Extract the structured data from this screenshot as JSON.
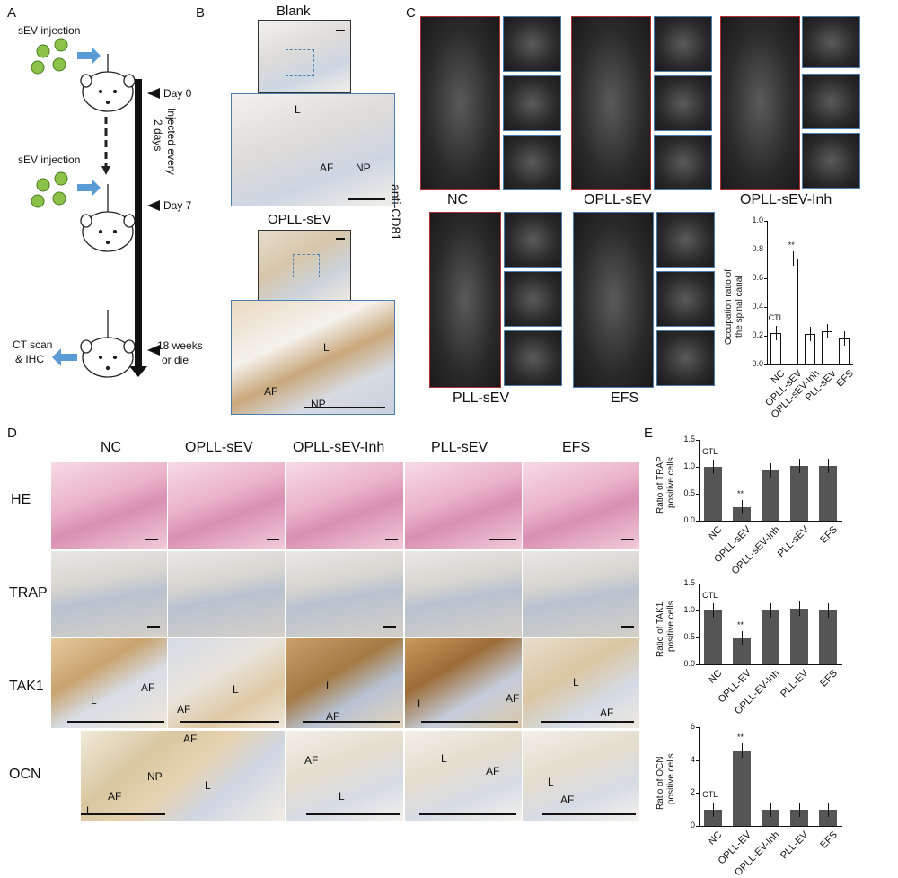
{
  "panels": {
    "A": "A",
    "B": "B",
    "C": "C",
    "D": "D",
    "E": "E"
  },
  "panelA": {
    "sev_top": "sEV injection",
    "sev_mid": "sEV injection",
    "day0": "Day 0",
    "day7": "Day 7",
    "injected": "Injected every",
    "injected2": "2 days",
    "weeks": "18 weeks",
    "die": "or die",
    "ct1": "CT scan",
    "ct2": "& IHC"
  },
  "panelB": {
    "blank": "Blank",
    "opll": "OPLL-sEV",
    "anti": "anti-CD81",
    "L": "L",
    "AF": "AF",
    "NP": "NP"
  },
  "panelC": {
    "labels": [
      "NC",
      "OPLL-sEV",
      "OPLL-sEV-Inh",
      "PLL-sEV",
      "EFS"
    ],
    "chart": {
      "ylabel1": "Occupation ratio of",
      "ylabel2": "the spinal canal",
      "yticks": [
        "0.0",
        "0.2",
        "0.4",
        "0.6",
        "0.8",
        "1.0"
      ],
      "ctl": "CTL",
      "sig": "**",
      "categories": [
        "NC",
        "OPLL-sEV",
        "OPLL-sEV-Inh",
        "PLL-sEV",
        "EFS"
      ]
    }
  },
  "panelD": {
    "cols": [
      "NC",
      "OPLL-sEV",
      "OPLL-sEV-Inh",
      "PLL-sEV",
      "EFS"
    ],
    "rows": [
      "HE",
      "TRAP",
      "TAK1",
      "OCN"
    ],
    "L": "L",
    "AF": "AF",
    "NP": "NP"
  },
  "panelE": {
    "c1": {
      "ylabel1": "Ratio of TRAP",
      "ylabel2": "positive cells",
      "yticks": [
        "0.0",
        "0.5",
        "1.0",
        "1.5"
      ],
      "categories": [
        "NC",
        "OPLL-sEV",
        "OPLL-sEV-Inh",
        "PLL-sEV",
        "EFS"
      ]
    },
    "c2": {
      "ylabel1": "Ratio of TAK1",
      "ylabel2": "positive cells",
      "yticks": [
        "0.0",
        "0.5",
        "1.0",
        "1.5"
      ],
      "categories": [
        "NC",
        "OPLL-EV",
        "OPLL-EV-Inh",
        "PLL-EV",
        "EFS"
      ]
    },
    "c3": {
      "ylabel1": "Ratio of OCN",
      "ylabel2": "positive cells",
      "yticks": [
        "0",
        "2",
        "4",
        "6"
      ],
      "categories": [
        "NC",
        "OPLL-EV",
        "OPLL-EV-Inh",
        "PLL-EV",
        "EFS"
      ]
    },
    "ctl": "CTL",
    "sig": "**"
  },
  "chart_data": [
    {
      "type": "bar",
      "categories": [
        "NC",
        "OPLL-sEV",
        "OPLL-sEV-Inh",
        "PLL-sEV",
        "EFS"
      ],
      "values": [
        0.22,
        0.74,
        0.21,
        0.23,
        0.18
      ],
      "ylabel": "Occupation ratio of the spinal canal",
      "ylim": [
        0,
        1.0
      ]
    },
    {
      "type": "bar",
      "categories": [
        "NC",
        "OPLL-sEV",
        "OPLL-sEV-Inh",
        "PLL-sEV",
        "EFS"
      ],
      "values": [
        1.0,
        0.25,
        0.93,
        1.02,
        1.02
      ],
      "ylabel": "Ratio of TRAP positive cells",
      "ylim": [
        0,
        1.5
      ]
    },
    {
      "type": "bar",
      "categories": [
        "NC",
        "OPLL-EV",
        "OPLL-EV-Inh",
        "PLL-EV",
        "EFS"
      ],
      "values": [
        1.0,
        0.48,
        1.0,
        1.03,
        1.0
      ],
      "ylabel": "Ratio of TAK1 positive cells",
      "ylim": [
        0,
        1.5
      ]
    },
    {
      "type": "bar",
      "categories": [
        "NC",
        "OPLL-EV",
        "OPLL-EV-Inh",
        "PLL-EV",
        "EFS"
      ],
      "values": [
        1.0,
        4.6,
        1.0,
        1.0,
        1.0
      ],
      "ylabel": "Ratio of OCN positive cells",
      "ylim": [
        0,
        6
      ]
    }
  ]
}
